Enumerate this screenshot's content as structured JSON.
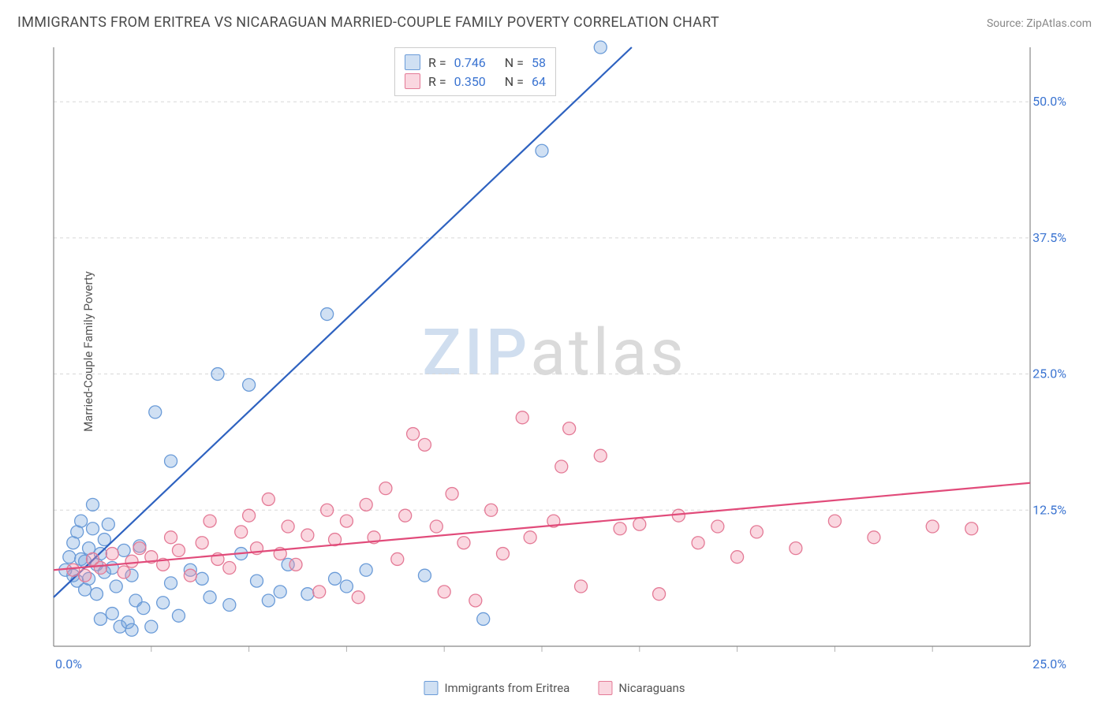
{
  "title": "IMMIGRANTS FROM ERITREA VS NICARAGUAN MARRIED-COUPLE FAMILY POVERTY CORRELATION CHART",
  "source": "Source: ZipAtlas.com",
  "ylabel": "Married-Couple Family Poverty",
  "watermark": {
    "zip": "ZIP",
    "atlas": "atlas"
  },
  "chart": {
    "type": "scatter",
    "background_color": "#ffffff",
    "grid_color": "#d8d8d8",
    "axis_color": "#888888",
    "tick_color": "#b0b0b0",
    "label_color": "#3b74d1",
    "xlim": [
      0,
      25
    ],
    "ylim": [
      0,
      55
    ],
    "x_ticks": [
      0,
      25
    ],
    "x_tick_labels": [
      "0.0%",
      "25.0%"
    ],
    "y_ticks": [
      12.5,
      25.0,
      37.5,
      50.0
    ],
    "y_tick_labels": [
      "12.5%",
      "25.0%",
      "37.5%",
      "50.0%"
    ],
    "minor_x_step": 2.5,
    "minor_y_step": 2.5,
    "point_radius": 8,
    "series": [
      {
        "name": "Immigrants from Eritrea",
        "fill_color": "rgba(120,165,220,0.35)",
        "stroke_color": "#6a9bd8",
        "line_color": "#2e62c0",
        "R": "0.746",
        "N": "58",
        "trend": {
          "x1": 0,
          "y1": 4.5,
          "x2": 14.8,
          "y2": 55
        },
        "points": [
          [
            0.3,
            7.0
          ],
          [
            0.4,
            8.2
          ],
          [
            0.5,
            6.5
          ],
          [
            0.5,
            9.5
          ],
          [
            0.6,
            6.0
          ],
          [
            0.6,
            10.5
          ],
          [
            0.7,
            8.0
          ],
          [
            0.7,
            11.5
          ],
          [
            0.8,
            5.2
          ],
          [
            0.8,
            7.8
          ],
          [
            0.9,
            6.2
          ],
          [
            0.9,
            9.0
          ],
          [
            1.0,
            10.8
          ],
          [
            1.0,
            13.0
          ],
          [
            1.1,
            7.5
          ],
          [
            1.1,
            4.8
          ],
          [
            1.2,
            8.5
          ],
          [
            1.2,
            2.5
          ],
          [
            1.3,
            6.8
          ],
          [
            1.3,
            9.8
          ],
          [
            1.4,
            11.2
          ],
          [
            1.5,
            3.0
          ],
          [
            1.5,
            7.2
          ],
          [
            1.6,
            5.5
          ],
          [
            1.7,
            1.8
          ],
          [
            1.8,
            8.8
          ],
          [
            1.9,
            2.2
          ],
          [
            2.0,
            6.5
          ],
          [
            2.0,
            1.5
          ],
          [
            2.1,
            4.2
          ],
          [
            2.2,
            9.2
          ],
          [
            2.3,
            3.5
          ],
          [
            2.5,
            1.8
          ],
          [
            2.6,
            21.5
          ],
          [
            2.8,
            4.0
          ],
          [
            3.0,
            5.8
          ],
          [
            3.0,
            17.0
          ],
          [
            3.2,
            2.8
          ],
          [
            3.5,
            7.0
          ],
          [
            3.8,
            6.2
          ],
          [
            4.0,
            4.5
          ],
          [
            4.2,
            25.0
          ],
          [
            4.5,
            3.8
          ],
          [
            4.8,
            8.5
          ],
          [
            5.0,
            24.0
          ],
          [
            5.2,
            6.0
          ],
          [
            5.5,
            4.2
          ],
          [
            5.8,
            5.0
          ],
          [
            6.0,
            7.5
          ],
          [
            6.5,
            4.8
          ],
          [
            7.0,
            30.5
          ],
          [
            7.2,
            6.2
          ],
          [
            7.5,
            5.5
          ],
          [
            8.0,
            7.0
          ],
          [
            9.5,
            6.5
          ],
          [
            11.0,
            2.5
          ],
          [
            12.5,
            45.5
          ],
          [
            14.0,
            55.0
          ]
        ]
      },
      {
        "name": "Nicaraguans",
        "fill_color": "rgba(240,140,165,0.35)",
        "stroke_color": "#e47a96",
        "line_color": "#e14b7a",
        "R": "0.350",
        "N": "64",
        "trend": {
          "x1": 0,
          "y1": 7.0,
          "x2": 25,
          "y2": 15.0
        },
        "points": [
          [
            0.5,
            7.0
          ],
          [
            0.8,
            6.5
          ],
          [
            1.0,
            8.0
          ],
          [
            1.2,
            7.2
          ],
          [
            1.5,
            8.5
          ],
          [
            1.8,
            6.8
          ],
          [
            2.0,
            7.8
          ],
          [
            2.2,
            9.0
          ],
          [
            2.5,
            8.2
          ],
          [
            2.8,
            7.5
          ],
          [
            3.0,
            10.0
          ],
          [
            3.2,
            8.8
          ],
          [
            3.5,
            6.5
          ],
          [
            3.8,
            9.5
          ],
          [
            4.0,
            11.5
          ],
          [
            4.2,
            8.0
          ],
          [
            4.5,
            7.2
          ],
          [
            4.8,
            10.5
          ],
          [
            5.0,
            12.0
          ],
          [
            5.2,
            9.0
          ],
          [
            5.5,
            13.5
          ],
          [
            5.8,
            8.5
          ],
          [
            6.0,
            11.0
          ],
          [
            6.2,
            7.5
          ],
          [
            6.5,
            10.2
          ],
          [
            6.8,
            5.0
          ],
          [
            7.0,
            12.5
          ],
          [
            7.2,
            9.8
          ],
          [
            7.5,
            11.5
          ],
          [
            7.8,
            4.5
          ],
          [
            8.0,
            13.0
          ],
          [
            8.2,
            10.0
          ],
          [
            8.5,
            14.5
          ],
          [
            8.8,
            8.0
          ],
          [
            9.0,
            12.0
          ],
          [
            9.2,
            19.5
          ],
          [
            9.5,
            18.5
          ],
          [
            9.8,
            11.0
          ],
          [
            10.0,
            5.0
          ],
          [
            10.2,
            14.0
          ],
          [
            10.5,
            9.5
          ],
          [
            10.8,
            4.2
          ],
          [
            11.2,
            12.5
          ],
          [
            11.5,
            8.5
          ],
          [
            12.0,
            21.0
          ],
          [
            12.2,
            10.0
          ],
          [
            12.8,
            11.5
          ],
          [
            13.0,
            16.5
          ],
          [
            13.2,
            20.0
          ],
          [
            13.5,
            5.5
          ],
          [
            14.0,
            17.5
          ],
          [
            14.5,
            10.8
          ],
          [
            15.0,
            11.2
          ],
          [
            15.5,
            4.8
          ],
          [
            16.0,
            12.0
          ],
          [
            16.5,
            9.5
          ],
          [
            17.0,
            11.0
          ],
          [
            17.5,
            8.2
          ],
          [
            18.0,
            10.5
          ],
          [
            19.0,
            9.0
          ],
          [
            20.0,
            11.5
          ],
          [
            21.0,
            10.0
          ],
          [
            22.5,
            11.0
          ],
          [
            23.5,
            10.8
          ]
        ]
      }
    ]
  },
  "legend": {
    "series1": "Immigrants from Eritrea",
    "series2": "Nicaraguans"
  },
  "top_legend": {
    "r_label": "R =",
    "n_label": "N ="
  }
}
